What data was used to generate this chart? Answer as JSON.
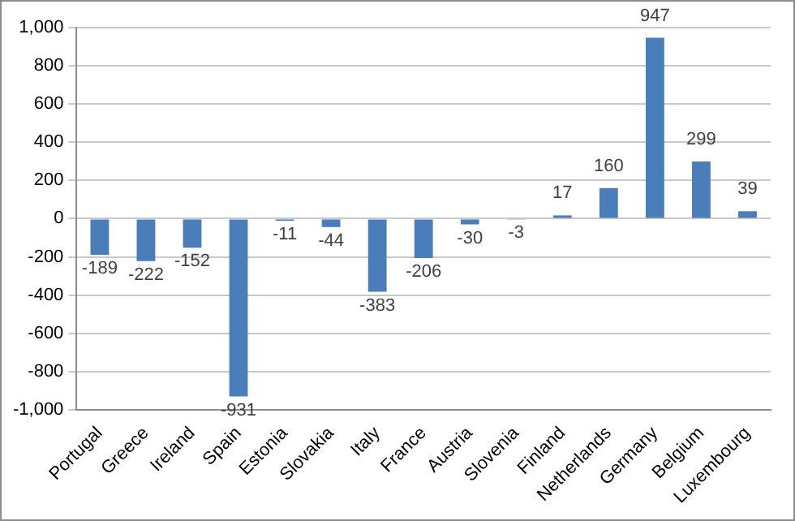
{
  "chart_data": {
    "type": "bar",
    "categories": [
      "Portugal",
      "Greece",
      "Ireland",
      "Spain",
      "Estonia",
      "Slovakia",
      "Italy",
      "France",
      "Austria",
      "Slovenia",
      "Finland",
      "Netherlands",
      "Germany",
      "Belgium",
      "Luxembourg"
    ],
    "values": [
      -189,
      -222,
      -152,
      -931,
      -11,
      -44,
      -383,
      -206,
      -30,
      -3,
      17,
      160,
      947,
      299,
      39
    ],
    "color": "#4a7ebb",
    "ylim": [
      -1000,
      1000
    ],
    "yticks": [
      {
        "value": -1000,
        "label": "-1,000"
      },
      -800,
      -600,
      -400,
      -200,
      0,
      200,
      400,
      600,
      800,
      {
        "value": 1000,
        "label": "1,000"
      }
    ],
    "grid": "y",
    "legend": false,
    "data_labels": true
  }
}
